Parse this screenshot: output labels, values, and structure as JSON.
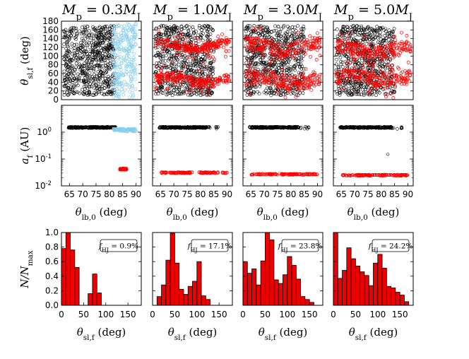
{
  "chart_data": {
    "type": "figure-grid",
    "colors": {
      "black": "#000000",
      "red": "#ff0000",
      "lightblue": "#87ceeb",
      "bar": "#ee0000"
    },
    "columns": [
      {
        "title_main": "M",
        "title_sub": "p",
        "title_eq": " = 0.3",
        "title_unit": "M",
        "title_unit_sub": "J",
        "f_label": "f",
        "f_sub": "HJ",
        "f_value": " = 0.9%",
        "top_red_bands": [],
        "top_blue_region": [
          81,
          90
        ],
        "mid_red": {
          "x": [
            84,
            86.5
          ],
          "y": 0.042
        },
        "mid_black_end": 82.5,
        "hist_values": [
          0.78,
          1.0,
          0.76,
          0.52,
          0,
          0,
          0.16,
          0.43,
          0.17,
          0
        ]
      },
      {
        "title_main": "M",
        "title_sub": "p",
        "title_eq": " = 1.0",
        "title_unit": "M",
        "title_unit_sub": "J",
        "f_label": "f",
        "f_sub": "HJ",
        "f_value": " = 17.1%",
        "top_red_bands": [
          [
            35,
            55
          ],
          [
            115,
            132
          ]
        ],
        "top_blue_region": null,
        "mid_red": {
          "x": [
            65,
            90
          ],
          "y": 0.031
        },
        "mid_black_end": 83,
        "hist_values": [
          0,
          0.12,
          0.28,
          0.62,
          0.99,
          0.58,
          0.22,
          0.15,
          0.26,
          0.33,
          0.6,
          0.13,
          0.08
        ]
      },
      {
        "title_main": "M",
        "title_sub": "p",
        "title_eq": " = 3.0",
        "title_unit": "M",
        "title_unit_sub": "J",
        "f_label": "f",
        "f_sub": "HJ",
        "f_value": " = 23.8%",
        "top_red_bands": [
          [
            30,
            60
          ],
          [
            105,
            135
          ]
        ],
        "top_blue_region": null,
        "mid_red": {
          "x": [
            65,
            90
          ],
          "y": 0.027
        },
        "mid_black_end": 83,
        "hist_values": [
          0.6,
          0.44,
          0.5,
          0.28,
          0.61,
          1.0,
          0.9,
          0.35,
          0.3,
          0.42,
          0.67,
          0.55,
          0.36,
          0.12,
          0.08,
          0.04
        ]
      },
      {
        "title_main": "M",
        "title_sub": "p",
        "title_eq": " = 5.0",
        "title_unit": "M",
        "title_unit_sub": "J",
        "f_label": "f",
        "f_sub": "HJ",
        "f_value": " = 24.2%",
        "top_red_bands": [
          [
            35,
            65
          ],
          [
            100,
            130
          ]
        ],
        "top_blue_region": null,
        "mid_red": {
          "x": [
            65,
            90
          ],
          "y": 0.025
        },
        "mid_black_end": 84,
        "hist_values": [
          1.0,
          0.37,
          0.48,
          0.79,
          0.64,
          0.54,
          0.46,
          0.41,
          0.27,
          0.58,
          0.7,
          0.51,
          0.26,
          0.24,
          0.18,
          0.14,
          0.05
        ]
      }
    ],
    "rows": {
      "top": {
        "ylabel_main": "θ",
        "ylabel_sub": "sl,f",
        "ylabel_unit": " (deg)",
        "ylim": [
          0,
          180
        ],
        "yticks": [
          "0",
          "20",
          "40",
          "60",
          "80",
          "100",
          "120",
          "140",
          "160",
          "180"
        ],
        "xlim": [
          62,
          92
        ]
      },
      "mid": {
        "ylabel_main": "a",
        "ylabel_sub": "f",
        "ylabel_unit": " (AU)",
        "ylim": [
          0.01,
          10
        ],
        "yticks_exp": [
          "-2",
          "-1",
          "0"
        ],
        "ytick_base": "10",
        "xlim": [
          62,
          92
        ],
        "xticks": [
          "65",
          "70",
          "75",
          "80",
          "85",
          "90"
        ],
        "xlabel_main": "θ",
        "xlabel_sub": "lb,0",
        "xlabel_unit": " (deg)"
      },
      "bot": {
        "ylabel_main": "N",
        "ylabel_over": "/N",
        "ylabel_sub": "max",
        "ylim": [
          0,
          1
        ],
        "yticks": [
          "0.0",
          "0.2",
          "0.4",
          "0.6",
          "0.8",
          "1.0"
        ],
        "xlim": [
          0,
          180
        ],
        "xticks": [
          "0",
          "50",
          "100",
          "150"
        ],
        "bin_width": 10,
        "xlabel_main": "θ",
        "xlabel_sub": "sl,f",
        "xlabel_unit": " (deg)"
      }
    }
  }
}
